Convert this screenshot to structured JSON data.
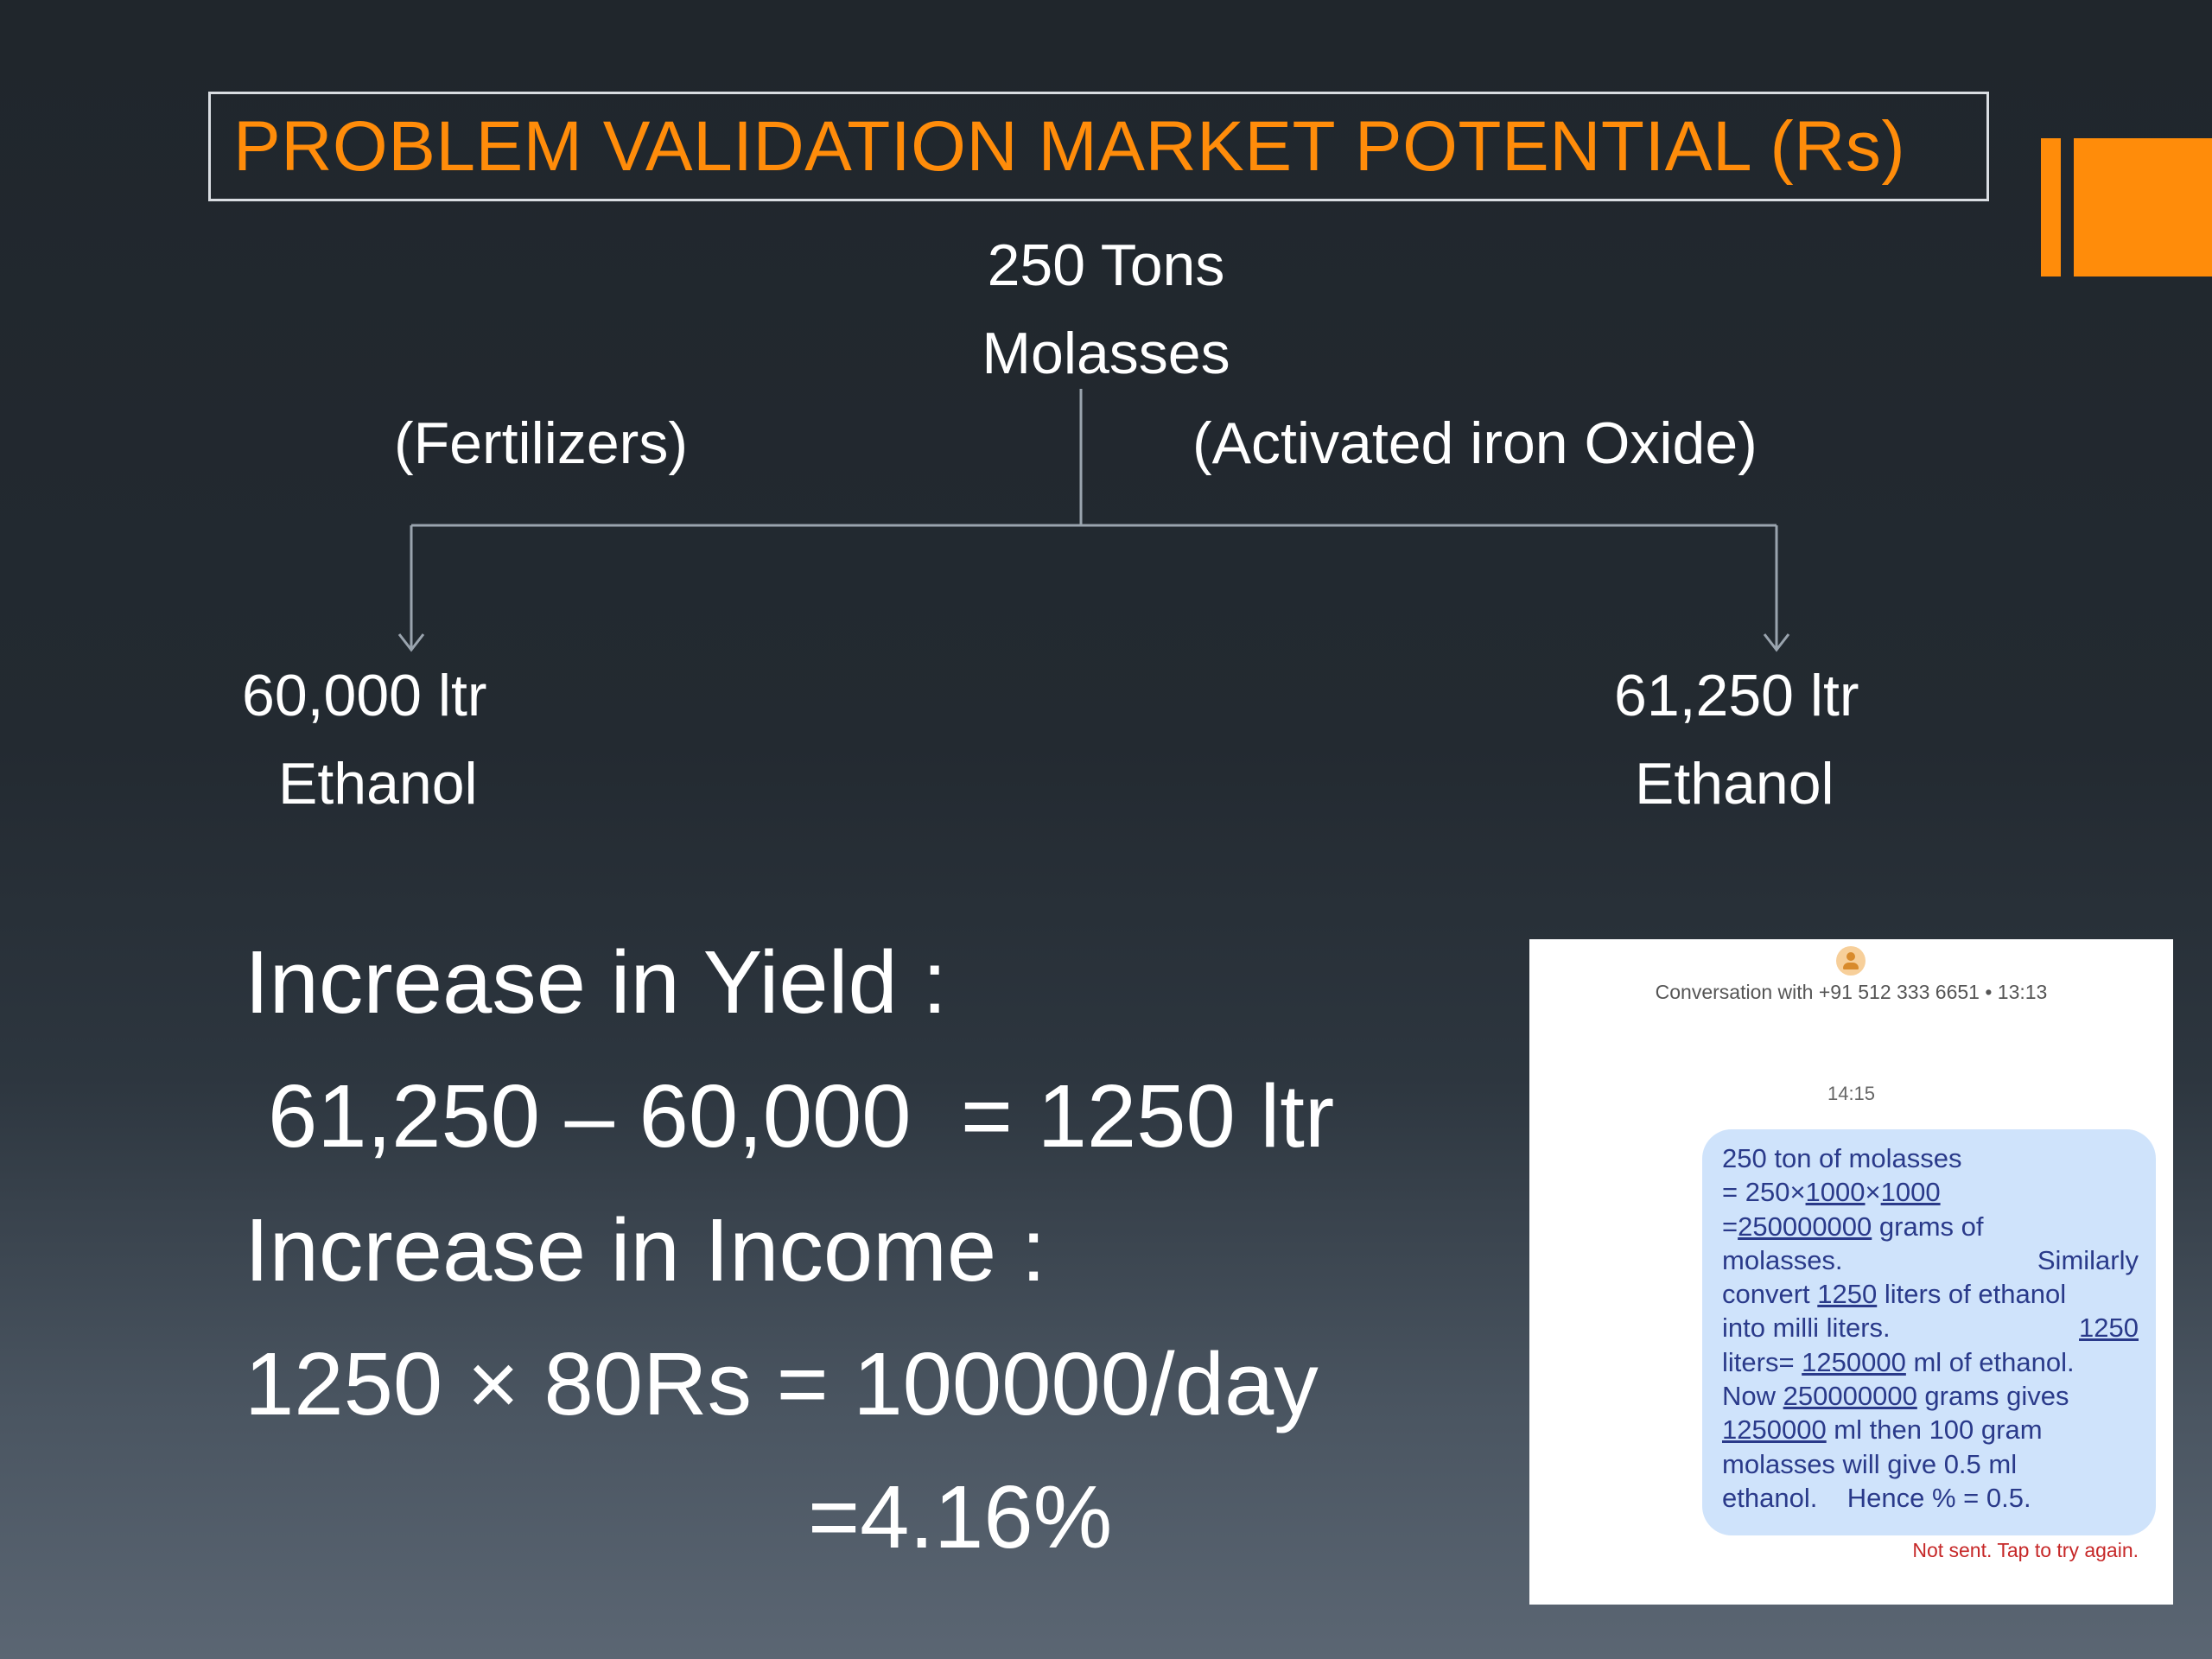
{
  "title": "PROBLEM VALIDATION MARKET POTENTIAL (Rs)",
  "colors": {
    "accent": "#ff8c0a",
    "connector": "#9aa4ae",
    "text": "#ffffff"
  },
  "diagram": {
    "root_line1": "250 Tons",
    "root_line2": "Molasses",
    "left_branch": "(Fertilizers)",
    "right_branch": "(Activated iron Oxide)",
    "left_leaf_line1": "60,000 ltr",
    "left_leaf_line2": "Ethanol",
    "right_leaf_line1": "61,250 ltr",
    "right_leaf_line2": "Ethanol"
  },
  "calc": {
    "yield_heading": "Increase in Yield :",
    "yield_formula": "61,250 – 60,000  = 1250 ltr",
    "income_heading": "Increase in Income :",
    "income_formula": "1250 × 80Rs = 100000/day",
    "percent": "=4.16%"
  },
  "phone": {
    "header": "Conversation with +91 512 333 6651 • 13:13",
    "time": "14:15",
    "message": {
      "l1": "250 ton of molasses",
      "l2a": "= 250×",
      "l2b": "1000",
      "l2c": "×",
      "l2d": "1000",
      "l3a": "=",
      "l3b": "250000000",
      "l3c": " grams of",
      "l4a": "molasses.",
      "l4b": "Similarly",
      "l5a": "convert ",
      "l5b": "1250",
      "l5c": " liters of ethanol",
      "l6a": "into milli liters.",
      "l6b": "1250",
      "l7a": "liters= ",
      "l7b": "1250000",
      "l7c": " ml of ethanol.",
      "l8a": "Now ",
      "l8b": "250000000",
      "l8c": " grams gives",
      "l9a": "1250000",
      "l9b": " ml then 100 gram",
      "l10": "molasses will give 0.5 ml",
      "l11": "ethanol.    Hence % = 0.5."
    },
    "status": "Not sent. Tap to try again."
  }
}
